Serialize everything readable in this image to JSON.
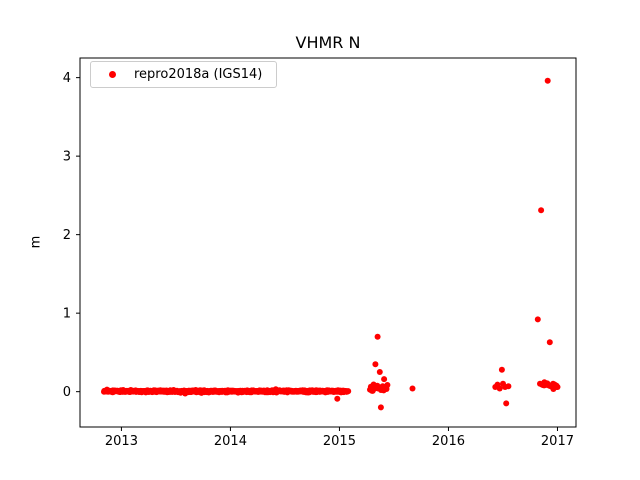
{
  "figure": {
    "title": "VHMR N",
    "ylabel": "m",
    "legend_label": "repro2018a (IGS14)"
  },
  "chart_data": {
    "type": "scatter",
    "title": "VHMR N",
    "xlabel": "",
    "ylabel": "m",
    "xlim": [
      2012.62,
      2017.17
    ],
    "ylim": [
      -0.45,
      4.25
    ],
    "xticks": [
      2013,
      2014,
      2015,
      2016,
      2017
    ],
    "yticks": [
      0,
      1,
      2,
      3,
      4
    ],
    "grid": false,
    "legend": {
      "entries": [
        "repro2018a (IGS14)"
      ],
      "position": "upper-left"
    },
    "marker": {
      "color": "#ff0000",
      "radius_px": 3
    },
    "seed": 1234567,
    "series": [
      {
        "name": "repro2018a (IGS14)",
        "color": "#ff0000",
        "dense_bands": [
          {
            "x_start": 2012.84,
            "x_end": 2015.08,
            "n": 720,
            "y_center": 0.005,
            "y_spread": 0.018
          },
          {
            "x_start": 2015.28,
            "x_end": 2015.44,
            "n": 20,
            "y_center": 0.05,
            "y_spread": 0.06
          },
          {
            "x_start": 2016.86,
            "x_end": 2017.0,
            "n": 16,
            "y_center": 0.08,
            "y_spread": 0.03
          }
        ],
        "outliers": [
          [
            2014.98,
            -0.09
          ],
          [
            2015.33,
            0.35
          ],
          [
            2015.35,
            0.7
          ],
          [
            2015.37,
            0.25
          ],
          [
            2015.38,
            -0.2
          ],
          [
            2015.41,
            0.16
          ],
          [
            2015.67,
            0.04
          ],
          [
            2016.43,
            0.06
          ],
          [
            2016.45,
            0.09
          ],
          [
            2016.47,
            0.04
          ],
          [
            2016.49,
            0.28
          ],
          [
            2016.5,
            0.1
          ],
          [
            2016.52,
            0.06
          ],
          [
            2016.53,
            -0.15
          ],
          [
            2016.55,
            0.07
          ],
          [
            2016.82,
            0.92
          ],
          [
            2016.84,
            0.1
          ],
          [
            2016.85,
            2.31
          ],
          [
            2016.88,
            0.12
          ],
          [
            2016.91,
            3.96
          ],
          [
            2016.93,
            0.63
          ],
          [
            2016.96,
            0.1
          ],
          [
            2016.99,
            0.06
          ]
        ]
      }
    ]
  }
}
